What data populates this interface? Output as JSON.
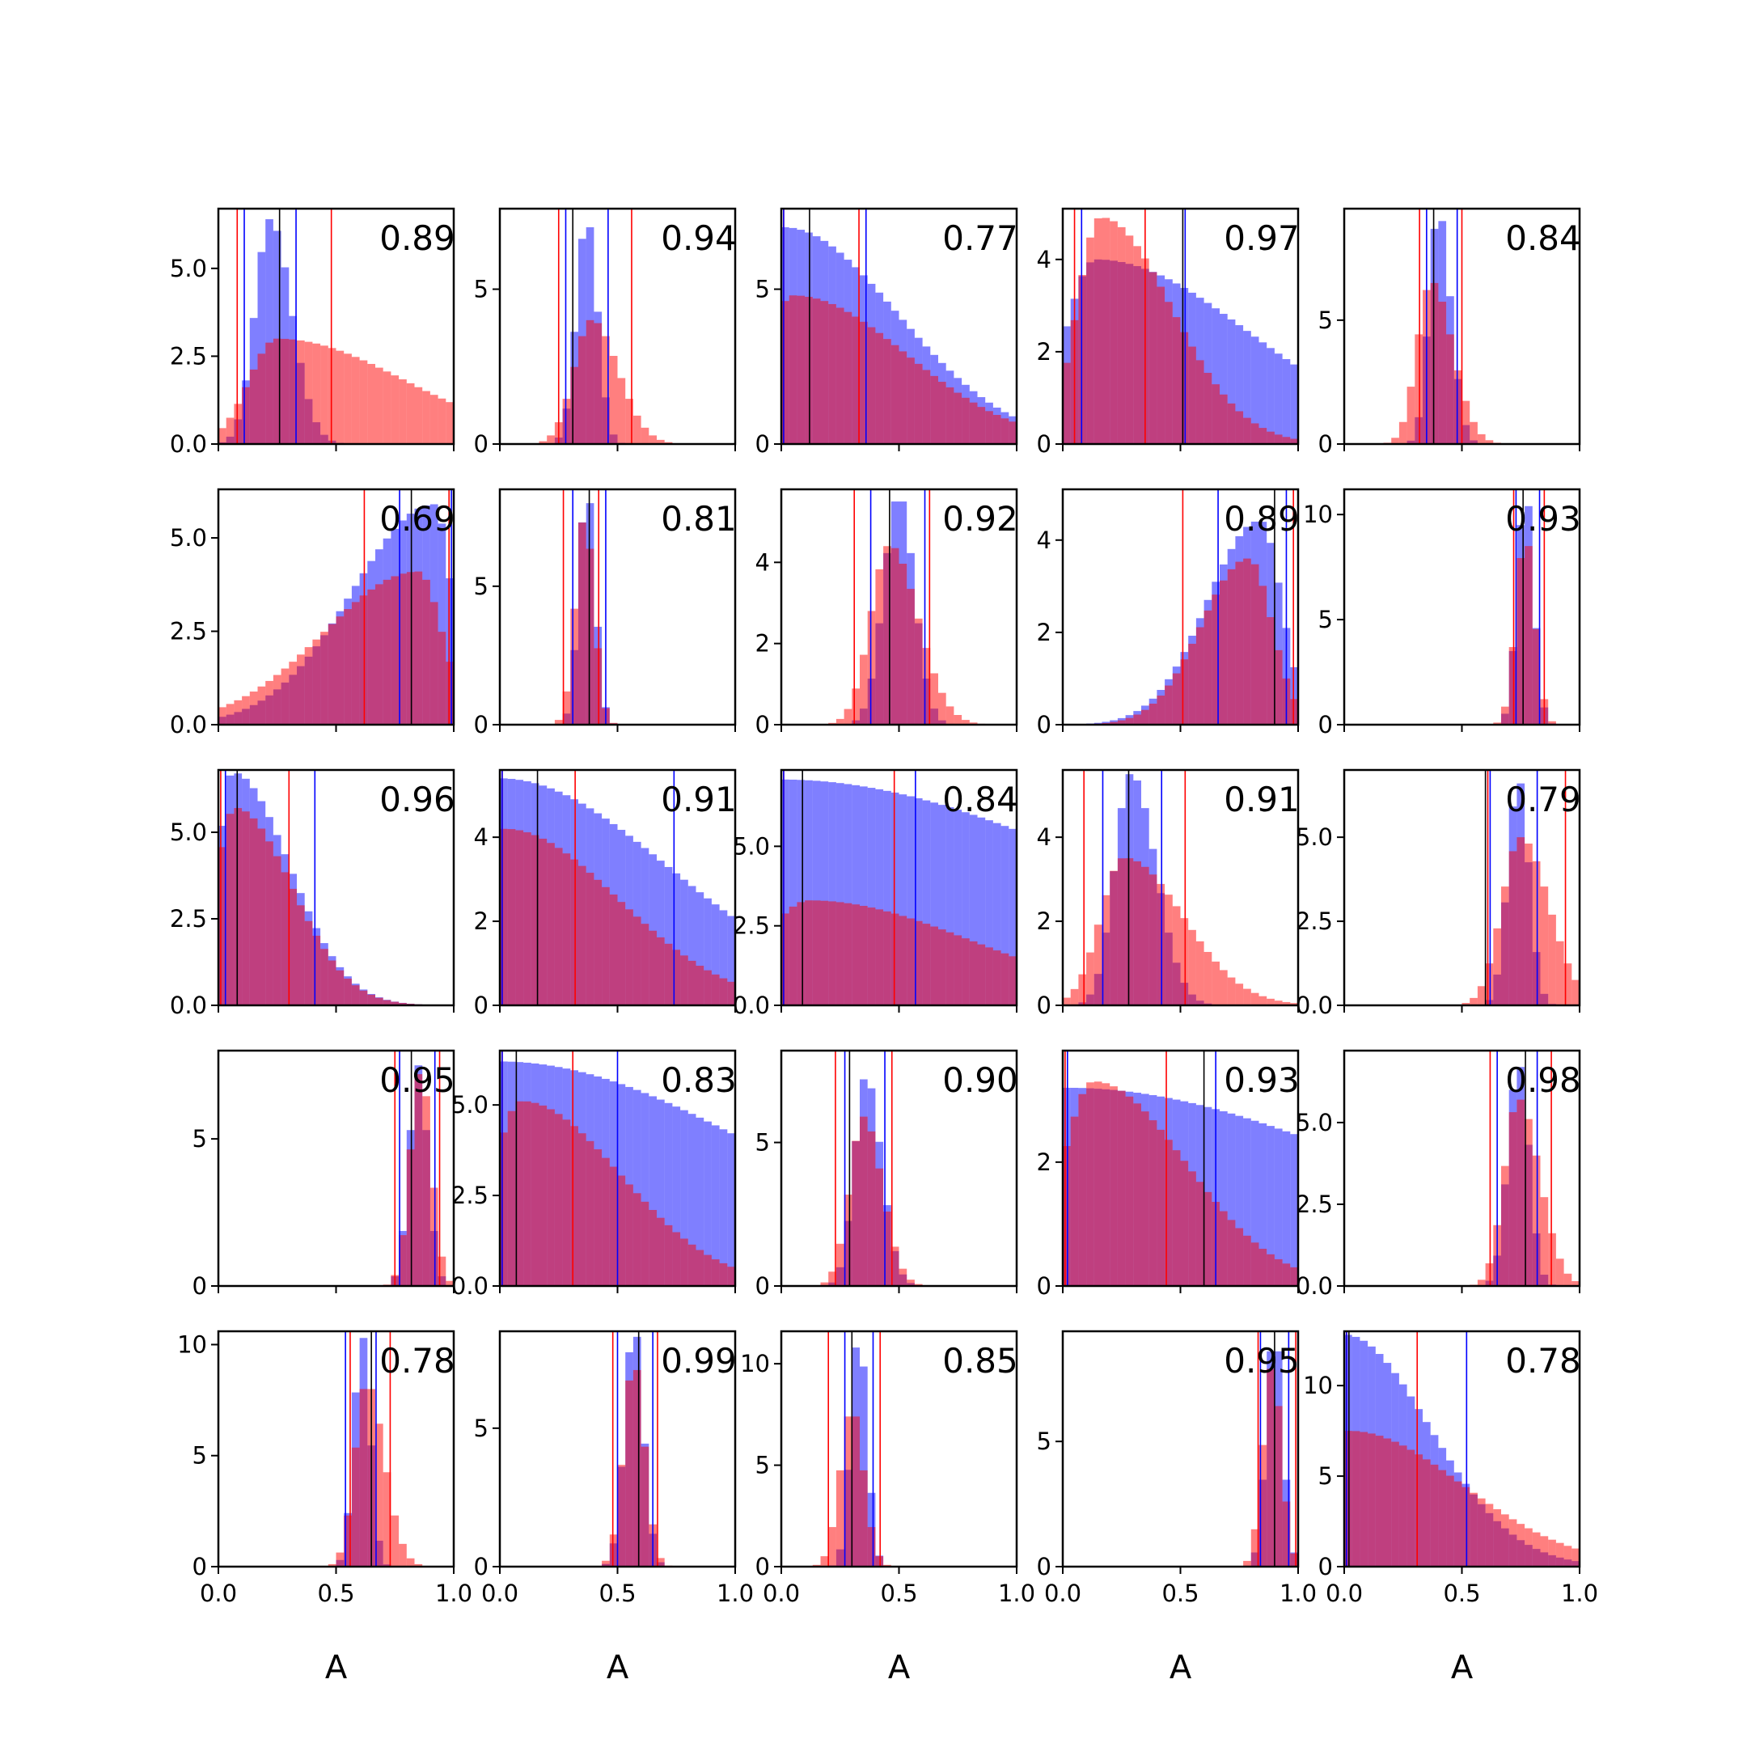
{
  "chart_data": {
    "type": "histogram-grid",
    "rows": 5,
    "cols": 5,
    "xlim": [
      0,
      1
    ],
    "bins": 30,
    "xlabel": "A",
    "x_ticks": [
      0.0,
      0.5,
      1.0
    ],
    "x_tick_labels": [
      "0.0",
      "0.5",
      "1.0"
    ],
    "colors": {
      "posterior_a": "#0000ff",
      "posterior_b": "#ff0000",
      "truth": "#000000"
    },
    "panels": [
      {
        "score": "0.89",
        "ylim": [
          0,
          6.7
        ],
        "yticks": [
          0,
          2.5,
          5
        ],
        "ytick_labels": [
          "0.0",
          "2.5",
          "5.0"
        ],
        "blue": {
          "mean": 0.22,
          "sd": 0.065,
          "skew": 0.4,
          "peak": 6.4
        },
        "red": {
          "mean": 0.25,
          "sd": 0.12,
          "skew": 3.5,
          "peak": 3.0
        },
        "blue_lines": [
          0.11,
          0.33
        ],
        "red_lines": [
          0.08,
          0.48
        ],
        "truth": 0.26
      },
      {
        "score": "0.94",
        "ylim": [
          0,
          7.6
        ],
        "yticks": [
          0,
          5
        ],
        "ytick_labels": [
          "0",
          "5"
        ],
        "blue": {
          "mean": 0.37,
          "sd": 0.045,
          "skew": 0,
          "peak": 7.0
        },
        "red": {
          "mean": 0.39,
          "sd": 0.075,
          "skew": 0.5,
          "peak": 4.0
        },
        "blue_lines": [
          0.28,
          0.46
        ],
        "red_lines": [
          0.25,
          0.56
        ],
        "truth": 0.31
      },
      {
        "score": "0.77",
        "ylim": [
          0,
          7.6
        ],
        "yticks": [
          0,
          5
        ],
        "ytick_labels": [
          "0",
          "5"
        ],
        "blue": {
          "mean": 0.01,
          "sd": 0.08,
          "skew": 5,
          "peak": 7.0
        },
        "red": {
          "mean": 0.05,
          "sd": 0.12,
          "skew": 3,
          "peak": 4.8
        },
        "blue_lines": [
          0.01,
          0.36
        ],
        "red_lines": [
          0.01,
          0.33
        ],
        "truth": 0.12
      },
      {
        "score": "0.97",
        "ylim": [
          0,
          5.1
        ],
        "yticks": [
          0,
          2,
          4
        ],
        "ytick_labels": [
          "0",
          "2",
          "4"
        ],
        "blue": {
          "mean": 0.14,
          "sd": 0.13,
          "skew": 4,
          "peak": 4.0
        },
        "red": {
          "mean": 0.16,
          "sd": 0.1,
          "skew": 2,
          "peak": 4.9
        },
        "blue_lines": [
          0.08,
          0.52
        ],
        "red_lines": [
          0.05,
          0.35
        ],
        "truth": 0.51
      },
      {
        "score": "0.84",
        "ylim": [
          0,
          9.5
        ],
        "yticks": [
          0,
          5
        ],
        "ytick_labels": [
          "0",
          "5"
        ],
        "blue": {
          "mean": 0.4,
          "sd": 0.04,
          "skew": 0.3,
          "peak": 9.0
        },
        "red": {
          "mean": 0.37,
          "sd": 0.06,
          "skew": 0.5,
          "peak": 6.5
        },
        "blue_lines": [
          0.35,
          0.48
        ],
        "red_lines": [
          0.32,
          0.5
        ],
        "truth": 0.38
      },
      {
        "score": "0.69",
        "ylim": [
          0,
          6.3
        ],
        "yticks": [
          0,
          2.5,
          5
        ],
        "ytick_labels": [
          "0.0",
          "2.5",
          "5.0"
        ],
        "blue": {
          "mean": 0.92,
          "sd": 0.07,
          "skew": -4,
          "peak": 5.9
        },
        "red": {
          "mean": 0.85,
          "sd": 0.1,
          "skew": -3,
          "peak": 4.1
        },
        "blue_lines": [
          0.77,
          0.99
        ],
        "red_lines": [
          0.62,
          0.98
        ],
        "truth": 0.82
      },
      {
        "score": "0.81",
        "ylim": [
          0,
          8.5
        ],
        "yticks": [
          0,
          5
        ],
        "ytick_labels": [
          "0",
          "5"
        ],
        "blue": {
          "mean": 0.37,
          "sd": 0.035,
          "skew": 0,
          "peak": 8.0
        },
        "red": {
          "mean": 0.36,
          "sd": 0.04,
          "skew": 0,
          "peak": 7.3
        },
        "blue_lines": [
          0.31,
          0.45
        ],
        "red_lines": [
          0.27,
          0.42
        ],
        "truth": 0.38
      },
      {
        "score": "0.92",
        "ylim": [
          0,
          5.8
        ],
        "yticks": [
          0,
          2,
          4
        ],
        "ytick_labels": [
          "0",
          "2",
          "4"
        ],
        "blue": {
          "mean": 0.5,
          "sd": 0.065,
          "skew": 0,
          "peak": 5.5
        },
        "red": {
          "mean": 0.46,
          "sd": 0.08,
          "skew": 0.5,
          "peak": 4.4
        },
        "blue_lines": [
          0.38,
          0.61
        ],
        "red_lines": [
          0.31,
          0.63
        ],
        "truth": 0.46
      },
      {
        "score": "0.89",
        "ylim": [
          0,
          5.1
        ],
        "yticks": [
          0,
          2,
          4
        ],
        "ytick_labels": [
          "0",
          "2",
          "4"
        ],
        "blue": {
          "mean": 0.84,
          "sd": 0.09,
          "skew": -1.5,
          "peak": 4.4
        },
        "red": {
          "mean": 0.79,
          "sd": 0.1,
          "skew": -1,
          "peak": 3.6
        },
        "blue_lines": [
          0.66,
          0.95
        ],
        "red_lines": [
          0.51,
          0.98
        ],
        "truth": 0.9
      },
      {
        "score": "0.93",
        "ylim": [
          0,
          11.2
        ],
        "yticks": [
          0,
          5,
          10
        ],
        "ytick_labels": [
          "0",
          "5",
          "10"
        ],
        "blue": {
          "mean": 0.77,
          "sd": 0.035,
          "skew": 0,
          "peak": 10.4
        },
        "red": {
          "mean": 0.77,
          "sd": 0.04,
          "skew": 0,
          "peak": 8.5
        },
        "blue_lines": [
          0.73,
          0.83
        ],
        "red_lines": [
          0.72,
          0.85
        ],
        "truth": 0.76
      },
      {
        "score": "0.96",
        "ylim": [
          0,
          6.8
        ],
        "yticks": [
          0,
          2.5,
          5
        ],
        "ytick_labels": [
          "0.0",
          "2.5",
          "5.0"
        ],
        "blue": {
          "mean": 0.06,
          "sd": 0.06,
          "skew": 3,
          "peak": 6.7
        },
        "red": {
          "mean": 0.07,
          "sd": 0.08,
          "skew": 2,
          "peak": 5.7
        },
        "blue_lines": [
          0.03,
          0.41
        ],
        "red_lines": [
          0.01,
          0.3
        ],
        "truth": 0.08
      },
      {
        "score": "0.91",
        "ylim": [
          0,
          5.6
        ],
        "yticks": [
          0,
          2,
          4
        ],
        "ytick_labels": [
          "0",
          "2",
          "4"
        ],
        "blue": {
          "mean": 0.0,
          "sd": 0.12,
          "skew": 5,
          "peak": 5.4
        },
        "red": {
          "mean": 0.02,
          "sd": 0.12,
          "skew": 3,
          "peak": 4.2
        },
        "blue_lines": [
          0.01,
          0.74
        ],
        "red_lines": [
          0.01,
          0.32
        ],
        "truth": 0.16
      },
      {
        "score": "0.84",
        "ylim": [
          0,
          7.4
        ],
        "yticks": [
          0,
          2.5,
          5
        ],
        "ytick_labels": [
          "0.0",
          "2.5",
          "5.0"
        ],
        "blue": {
          "mean": 0.0,
          "sd": 0.2,
          "skew": 6,
          "peak": 7.1
        },
        "red": {
          "mean": 0.12,
          "sd": 0.2,
          "skew": 2.5,
          "peak": 3.3
        },
        "blue_lines": [
          0.01,
          0.57
        ],
        "red_lines": [
          0.01,
          0.48
        ],
        "truth": 0.09
      },
      {
        "score": "0.91",
        "ylim": [
          0,
          5.6
        ],
        "yticks": [
          0,
          2,
          4
        ],
        "ytick_labels": [
          "0",
          "2",
          "4"
        ],
        "blue": {
          "mean": 0.29,
          "sd": 0.07,
          "skew": 0.5,
          "peak": 5.5
        },
        "red": {
          "mean": 0.26,
          "sd": 0.1,
          "skew": 1.5,
          "peak": 3.5
        },
        "blue_lines": [
          0.17,
          0.42
        ],
        "red_lines": [
          0.09,
          0.52
        ],
        "truth": 0.28
      },
      {
        "score": "0.79",
        "ylim": [
          0,
          7.0
        ],
        "yticks": [
          0,
          2.5,
          5
        ],
        "ytick_labels": [
          "0.0",
          "2.5",
          "5.0"
        ],
        "blue": {
          "mean": 0.74,
          "sd": 0.045,
          "skew": 0,
          "peak": 6.6
        },
        "red": {
          "mean": 0.75,
          "sd": 0.08,
          "skew": 0.5,
          "peak": 5.0
        },
        "blue_lines": [
          0.62,
          0.82
        ],
        "red_lines": [
          0.61,
          0.94
        ],
        "truth": 0.6
      },
      {
        "score": "0.95",
        "ylim": [
          0,
          8.0
        ],
        "yticks": [
          0,
          5
        ],
        "ytick_labels": [
          "0",
          "5"
        ],
        "blue": {
          "mean": 0.85,
          "sd": 0.04,
          "skew": 0,
          "peak": 7.5
        },
        "red": {
          "mean": 0.86,
          "sd": 0.045,
          "skew": 0,
          "peak": 7.2
        },
        "blue_lines": [
          0.77,
          0.92
        ],
        "red_lines": [
          0.75,
          0.94
        ],
        "truth": 0.82
      },
      {
        "score": "0.83",
        "ylim": [
          0,
          6.5
        ],
        "yticks": [
          0,
          2.5,
          5
        ],
        "ytick_labels": [
          "0.0",
          "2.5",
          "5.0"
        ],
        "blue": {
          "mean": 0.0,
          "sd": 0.16,
          "skew": 6,
          "peak": 6.2
        },
        "red": {
          "mean": 0.09,
          "sd": 0.12,
          "skew": 2.5,
          "peak": 5.1
        },
        "blue_lines": [
          0.01,
          0.5
        ],
        "red_lines": [
          0.01,
          0.31
        ],
        "truth": 0.07
      },
      {
        "score": "0.90",
        "ylim": [
          0,
          8.2
        ],
        "yticks": [
          0,
          5
        ],
        "ytick_labels": [
          "0",
          "5"
        ],
        "blue": {
          "mean": 0.36,
          "sd": 0.05,
          "skew": 0.3,
          "peak": 7.2
        },
        "red": {
          "mean": 0.35,
          "sd": 0.06,
          "skew": 0.3,
          "peak": 5.9
        },
        "blue_lines": [
          0.27,
          0.44
        ],
        "red_lines": [
          0.23,
          0.47
        ],
        "truth": 0.29
      },
      {
        "score": "0.93",
        "ylim": [
          0,
          3.8
        ],
        "yticks": [
          0,
          2
        ],
        "ytick_labels": [
          "0",
          "2"
        ],
        "blue": {
          "mean": 0.02,
          "sd": 0.22,
          "skew": 5,
          "peak": 3.2
        },
        "red": {
          "mean": 0.13,
          "sd": 0.13,
          "skew": 2,
          "peak": 3.3
        },
        "blue_lines": [
          0.02,
          0.65
        ],
        "red_lines": [
          0.01,
          0.44
        ],
        "truth": 0.6
      },
      {
        "score": "0.98",
        "ylim": [
          0,
          7.2
        ],
        "yticks": [
          0,
          2.5,
          5
        ],
        "ytick_labels": [
          "0.0",
          "2.5",
          "5.0"
        ],
        "blue": {
          "mean": 0.74,
          "sd": 0.045,
          "skew": 0,
          "peak": 6.7
        },
        "red": {
          "mean": 0.74,
          "sd": 0.06,
          "skew": 0.5,
          "peak": 5.7
        },
        "blue_lines": [
          0.65,
          0.82
        ],
        "red_lines": [
          0.62,
          0.88
        ],
        "truth": 0.77
      },
      {
        "score": "0.78",
        "ylim": [
          0,
          10.6
        ],
        "yticks": [
          0,
          5,
          10
        ],
        "ytick_labels": [
          "0",
          "5",
          "10"
        ],
        "blue": {
          "mean": 0.61,
          "sd": 0.035,
          "skew": 0,
          "peak": 10.3
        },
        "red": {
          "mean": 0.63,
          "sd": 0.05,
          "skew": 0.5,
          "peak": 8.0
        },
        "blue_lines": [
          0.54,
          0.67
        ],
        "red_lines": [
          0.56,
          0.73
        ],
        "truth": 0.65
      },
      {
        "score": "0.99",
        "ylim": [
          0,
          8.5
        ],
        "yticks": [
          0,
          5
        ],
        "ytick_labels": [
          "0",
          "5"
        ],
        "blue": {
          "mean": 0.57,
          "sd": 0.04,
          "skew": 0,
          "peak": 8.3
        },
        "red": {
          "mean": 0.57,
          "sd": 0.045,
          "skew": 0,
          "peak": 7.1
        },
        "blue_lines": [
          0.5,
          0.65
        ],
        "red_lines": [
          0.48,
          0.67
        ],
        "truth": 0.59
      },
      {
        "score": "0.85",
        "ylim": [
          0,
          11.6
        ],
        "yticks": [
          0,
          5,
          10
        ],
        "ytick_labels": [
          "0",
          "5",
          "10"
        ],
        "blue": {
          "mean": 0.33,
          "sd": 0.035,
          "skew": 0,
          "peak": 10.8
        },
        "red": {
          "mean": 0.3,
          "sd": 0.05,
          "skew": 0,
          "peak": 7.4
        },
        "blue_lines": [
          0.27,
          0.39
        ],
        "red_lines": [
          0.2,
          0.42
        ],
        "truth": 0.3
      },
      {
        "score": "0.95",
        "ylim": [
          0,
          9.4
        ],
        "yticks": [
          0,
          5
        ],
        "ytick_labels": [
          "0",
          "5"
        ],
        "blue": {
          "mean": 0.9,
          "sd": 0.035,
          "skew": 0,
          "peak": 8.6
        },
        "red": {
          "mean": 0.89,
          "sd": 0.04,
          "skew": 0,
          "peak": 7.9
        },
        "blue_lines": [
          0.84,
          0.96
        ],
        "red_lines": [
          0.83,
          0.99
        ],
        "truth": 0.9
      },
      {
        "score": "0.78",
        "ylim": [
          0,
          13.0
        ],
        "yticks": [
          0,
          5,
          10
        ],
        "ytick_labels": [
          "0",
          "5",
          "10"
        ],
        "blue": {
          "mean": 0.0,
          "sd": 0.06,
          "skew": 5,
          "peak": 12.8
        },
        "red": {
          "mean": 0.02,
          "sd": 0.12,
          "skew": 3,
          "peak": 7.5
        },
        "blue_lines": [
          0.01,
          0.52
        ],
        "red_lines": [
          0.01,
          0.31
        ],
        "truth": 0.02
      }
    ]
  }
}
